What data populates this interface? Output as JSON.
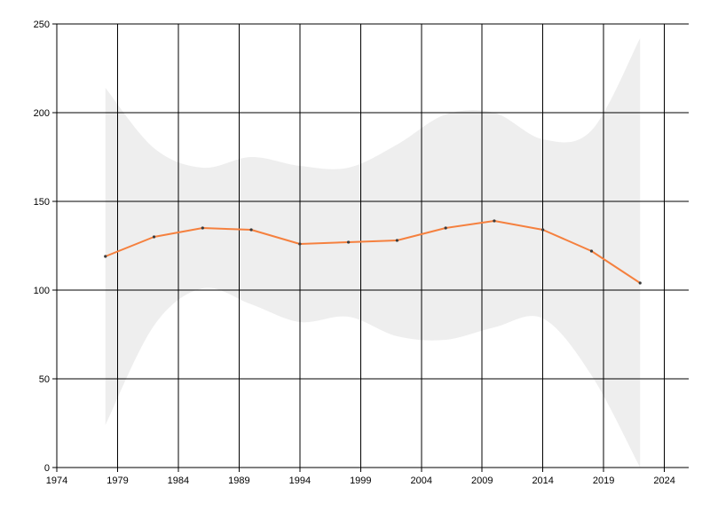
{
  "colors": {
    "line": "#F5803E",
    "band": "#EEEEEE",
    "grid": "#000000",
    "marker": "#3A3A3A",
    "background": "#FFFFFF"
  },
  "chart_data": {
    "type": "line",
    "title": "",
    "xlabel": "",
    "ylabel": "",
    "xlim": [
      1974,
      2026
    ],
    "ylim": [
      0,
      250
    ],
    "grid": true,
    "x_ticks": [
      1974,
      1979,
      1984,
      1989,
      1994,
      1999,
      2004,
      2009,
      2014,
      2019,
      2024
    ],
    "y_ticks": [
      0,
      50,
      100,
      150,
      200,
      250
    ],
    "series": [
      {
        "x": [
          1978,
          1982,
          1986,
          1990,
          1994,
          1998,
          2002,
          2006,
          2010,
          2014,
          2018,
          2022
        ],
        "values": [
          119,
          130,
          135,
          134,
          126,
          127,
          128,
          135,
          139,
          134,
          122,
          104
        ]
      }
    ],
    "band": {
      "x": [
        1978,
        1982,
        1986,
        1990,
        1994,
        1998,
        2002,
        2006,
        2010,
        2014,
        2018,
        2022
      ],
      "upper": [
        214,
        180,
        169,
        175,
        170,
        169,
        182,
        199,
        200,
        185,
        190,
        242
      ],
      "lower": [
        24,
        80,
        101,
        92,
        82,
        85,
        74,
        72,
        79,
        84,
        52,
        0
      ]
    }
  }
}
